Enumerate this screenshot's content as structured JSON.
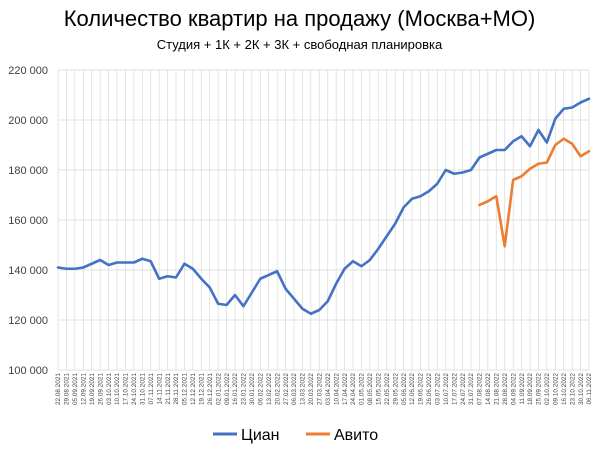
{
  "chart_data": {
    "type": "line",
    "title": "Количество квартир на продажу (Москва+МО)",
    "subtitle": "Студия + 1К + 2К + 3К + свободная планировка",
    "xlabel": "",
    "ylabel": "",
    "ylim": [
      100000,
      220000
    ],
    "y_ticks": [
      100000,
      120000,
      140000,
      160000,
      180000,
      200000,
      220000
    ],
    "y_tick_labels": [
      "100 000",
      "120 000",
      "140 000",
      "160 000",
      "180 000",
      "200 000",
      "220 000"
    ],
    "grid": "vertical+horizontal",
    "legend_position": "bottom",
    "x_labels": [
      "22.08.2021",
      "29.08.2021",
      "05.09.2021",
      "12.09.2021",
      "19.09.2021",
      "26.09.2021",
      "03.10.2021",
      "10.10.2021",
      "17.10.2021",
      "24.10.2021",
      "31.10.2021",
      "07.11.2021",
      "14.11.2021",
      "21.11.2021",
      "28.11.2021",
      "05.12.2021",
      "12.12.2021",
      "19.12.2021",
      "26.12.2021",
      "02.01.2022",
      "09.01.2022",
      "16.01.2022",
      "23.01.2022",
      "30.01.2022",
      "06.02.2022",
      "13.02.2022",
      "20.02.2022",
      "27.02.2022",
      "06.03.2022",
      "13.03.2022",
      "20.03.2022",
      "27.03.2022",
      "03.04.2022",
      "10.04.2022",
      "17.04.2022",
      "24.04.2022",
      "01.05.2022",
      "08.05.2022",
      "15.05.2022",
      "22.05.2022",
      "29.05.2022",
      "05.06.2022",
      "12.06.2022",
      "19.06.2022",
      "26.06.2022",
      "03.07.2022",
      "10.07.2022",
      "17.07.2022",
      "24.07.2022",
      "31.07.2022",
      "07.08.2022",
      "14.08.2022",
      "21.08.2022",
      "28.08.2022",
      "04.09.2022",
      "11.09.2022",
      "18.09.2022",
      "25.09.2022",
      "02.10.2022",
      "09.10.2022",
      "16.10.2022",
      "23.10.2022",
      "30.10.2022",
      "06.11.2022"
    ],
    "series": [
      {
        "name": "Циан",
        "color": "#4472C4",
        "values": [
          141000,
          140500,
          140500,
          141000,
          142500,
          144000,
          142000,
          143000,
          143000,
          143000,
          144500,
          143500,
          136500,
          137500,
          137000,
          142500,
          140500,
          136500,
          133000,
          126500,
          126000,
          130000,
          125500,
          131000,
          136500,
          138000,
          139500,
          132500,
          128500,
          124500,
          122500,
          124000,
          127500,
          134500,
          140500,
          143500,
          141500,
          144000,
          148500,
          153500,
          158500,
          165000,
          168500,
          169500,
          171500,
          174500,
          180000,
          178500,
          179000,
          180000,
          185000,
          186500,
          188000,
          188000,
          191500,
          193500,
          189500,
          196000,
          191000,
          200500,
          204500,
          205000,
          207000,
          208500
        ]
      },
      {
        "name": "Авито",
        "color": "#ED7D31",
        "values": [
          null,
          null,
          null,
          null,
          null,
          null,
          null,
          null,
          null,
          null,
          null,
          null,
          null,
          null,
          null,
          null,
          null,
          null,
          null,
          null,
          null,
          null,
          null,
          null,
          null,
          null,
          null,
          null,
          null,
          null,
          null,
          null,
          null,
          null,
          null,
          null,
          null,
          null,
          null,
          null,
          null,
          null,
          null,
          null,
          null,
          null,
          null,
          null,
          null,
          null,
          166000,
          167500,
          169500,
          149500,
          176000,
          177500,
          180500,
          182500,
          183000,
          190000,
          192500,
          190500,
          185500,
          187500
        ]
      }
    ]
  }
}
